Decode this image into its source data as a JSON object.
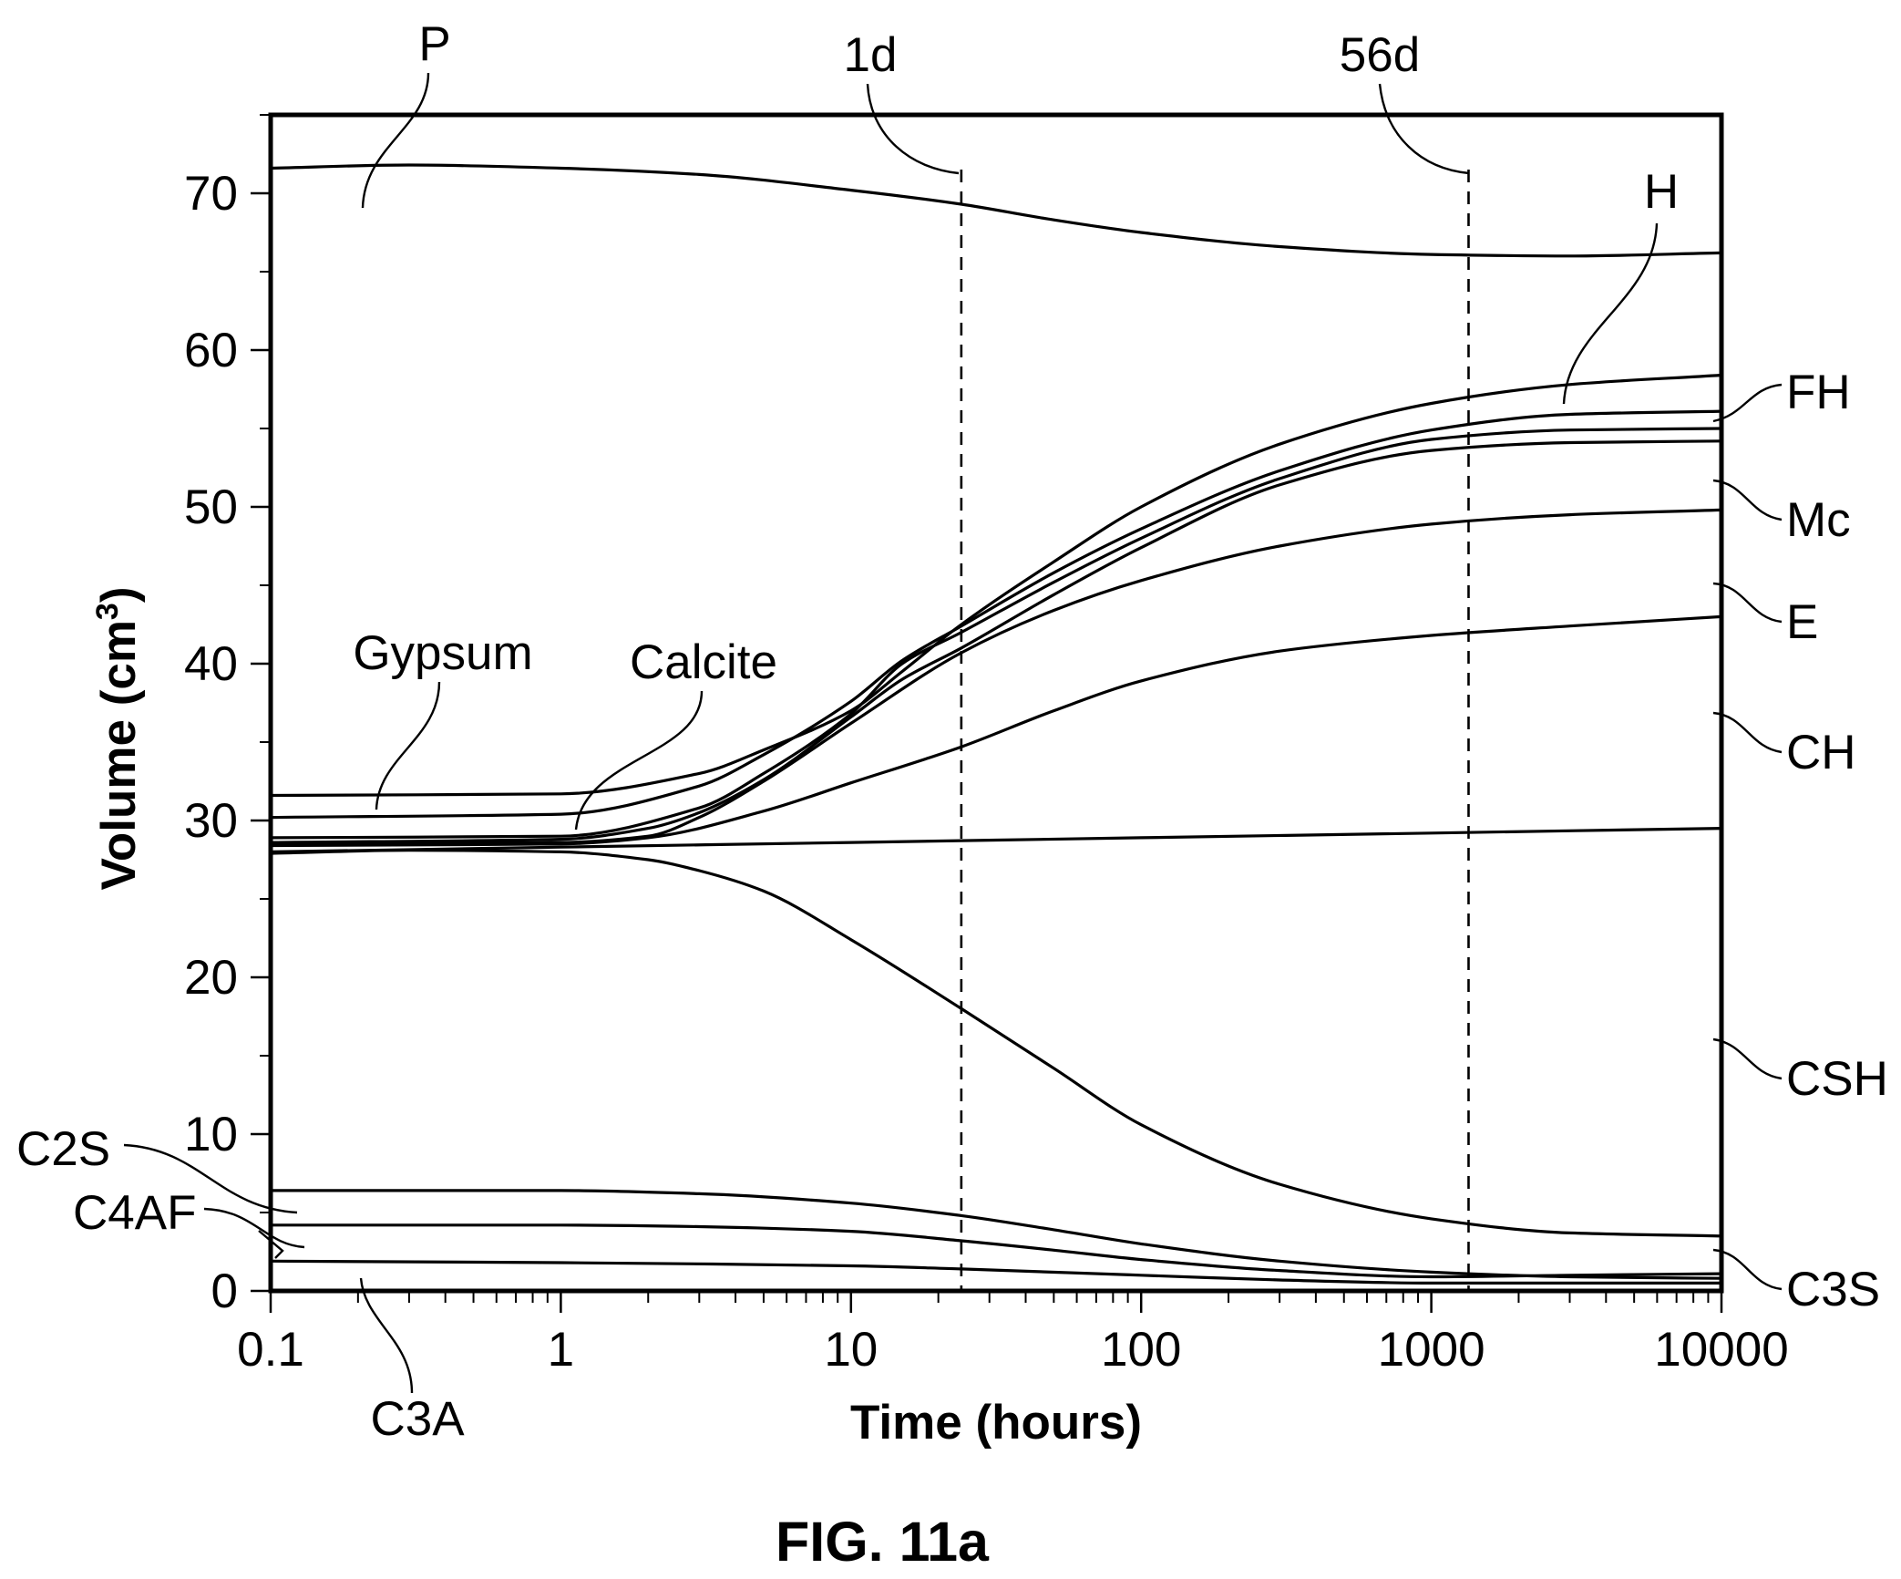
{
  "chart_data": {
    "type": "line",
    "xscale": "log",
    "xlim": [
      0.1,
      10000
    ],
    "ylim": [
      0,
      75
    ],
    "xlabel": "Time (hours)",
    "ylabel": "Volume (cm",
    "ylabel_sup": "3",
    "ylabel_end": ")",
    "caption": "FIG. 11a",
    "x_ticks": [
      0.1,
      1,
      10,
      100,
      1000,
      10000
    ],
    "x_tick_labels": [
      "0.1",
      "1",
      "10",
      "100",
      "1000",
      "10000"
    ],
    "y_ticks": [
      0,
      10,
      20,
      30,
      40,
      50,
      60,
      70
    ],
    "y_tick_labels": [
      "0",
      "10",
      "20",
      "30",
      "40",
      "50",
      "60",
      "70"
    ],
    "vertical_markers": [
      {
        "label": "1d",
        "x": 24
      },
      {
        "label": "56d",
        "x": 1344
      }
    ],
    "series": [
      {
        "name": "P",
        "x": [
          0.1,
          0.3,
          1,
          3,
          10,
          24,
          50,
          100,
          300,
          1000,
          3000,
          10000
        ],
        "y": [
          71.6,
          71.8,
          71.6,
          71.2,
          70.2,
          69.3,
          68.3,
          67.5,
          66.6,
          66.1,
          66.0,
          66.2
        ]
      },
      {
        "name": "H",
        "x": [
          0.1,
          1,
          3,
          5,
          10,
          15,
          24,
          50,
          100,
          300,
          1000,
          3000,
          10000
        ],
        "y": [
          31.6,
          31.7,
          33.0,
          34.5,
          37.0,
          39.5,
          42.5,
          46.5,
          50.0,
          54.0,
          56.6,
          57.8,
          58.4
        ]
      },
      {
        "name": "FH",
        "x": [
          0.1,
          1,
          3,
          5,
          10,
          15,
          24,
          50,
          100,
          300,
          1000,
          3000,
          10000
        ],
        "y": [
          30.2,
          30.4,
          32.2,
          34.2,
          37.6,
          40.2,
          42.4,
          45.8,
          48.6,
          52.3,
          54.9,
          55.9,
          56.1
        ]
      },
      {
        "name": "Mc",
        "x": [
          0.1,
          1,
          3,
          5,
          10,
          15,
          24,
          50,
          100,
          300,
          1000,
          3000,
          10000
        ],
        "y": [
          28.9,
          29.0,
          30.8,
          33.0,
          36.8,
          40.0,
          42.0,
          45.2,
          48.0,
          51.8,
          54.3,
          54.9,
          55.0
        ]
      },
      {
        "name": "E",
        "x": [
          0.1,
          1,
          2,
          3,
          5,
          10,
          15,
          24,
          50,
          100,
          300,
          1000,
          3000,
          10000
        ],
        "y": [
          28.6,
          28.8,
          29.5,
          30.5,
          32.6,
          36.6,
          39.0,
          41.0,
          44.4,
          47.4,
          51.4,
          53.6,
          54.1,
          54.2
        ]
      },
      {
        "name": "CH",
        "x": [
          0.1,
          1,
          2,
          3,
          5,
          10,
          24,
          50,
          100,
          300,
          1000,
          3000,
          10000
        ],
        "y": [
          28.5,
          28.6,
          29.0,
          30.2,
          32.5,
          36.2,
          40.7,
          43.4,
          45.3,
          47.5,
          48.9,
          49.5,
          49.8
        ]
      },
      {
        "name": "C3S",
        "x": [
          0.1,
          1,
          2,
          5,
          10,
          24,
          50,
          100,
          300,
          1000,
          3000,
          10000
        ],
        "y": [
          28.4,
          28.5,
          28.9,
          30.6,
          32.4,
          34.7,
          37.0,
          38.9,
          40.8,
          41.8,
          42.4,
          43.0
        ]
      },
      {
        "name": "CSH",
        "x": [
          0.1,
          1,
          10,
          100,
          1000,
          10000
        ],
        "y": [
          28.0,
          28.3,
          28.6,
          28.9,
          29.2,
          29.5
        ]
      },
      {
        "name": "Gypsum",
        "x": [
          0.1,
          0.3,
          1,
          2,
          3,
          5,
          10,
          24,
          50,
          100,
          300,
          1000,
          3000,
          10000
        ],
        "y": [
          27.9,
          28.1,
          28.0,
          27.5,
          26.8,
          25.5,
          22.4,
          18.0,
          14.2,
          10.6,
          6.8,
          4.6,
          3.7,
          3.5
        ]
      },
      {
        "name": "C2S",
        "x": [
          0.1,
          1,
          3,
          10,
          24,
          50,
          100,
          300,
          1000,
          3000,
          10000
        ],
        "y": [
          6.4,
          6.4,
          6.2,
          5.6,
          4.8,
          3.9,
          3.0,
          1.9,
          1.2,
          0.9,
          0.8
        ]
      },
      {
        "name": "C4AF",
        "x": [
          0.1,
          1,
          3,
          10,
          24,
          50,
          100,
          300,
          1000,
          3000,
          10000
        ],
        "y": [
          4.2,
          4.2,
          4.1,
          3.8,
          3.2,
          2.6,
          2.0,
          1.3,
          0.9,
          1.0,
          1.1
        ]
      },
      {
        "name": "C3A",
        "x": [
          0.1,
          1,
          10,
          24,
          100,
          300,
          1000,
          3000,
          10000
        ],
        "y": [
          1.9,
          1.8,
          1.6,
          1.4,
          1.0,
          0.7,
          0.5,
          0.5,
          0.5
        ]
      }
    ],
    "labels": {
      "P": "P",
      "H": "H",
      "FH": "FH",
      "Mc": "Mc",
      "E": "E",
      "CH": "CH",
      "CSH": "CSH",
      "C3S": "C3S",
      "Gypsum": "Gypsum",
      "Calcite": "Calcite",
      "C2S": "C2S",
      "C4AF": "C4AF",
      "C3A": "C3A"
    }
  }
}
